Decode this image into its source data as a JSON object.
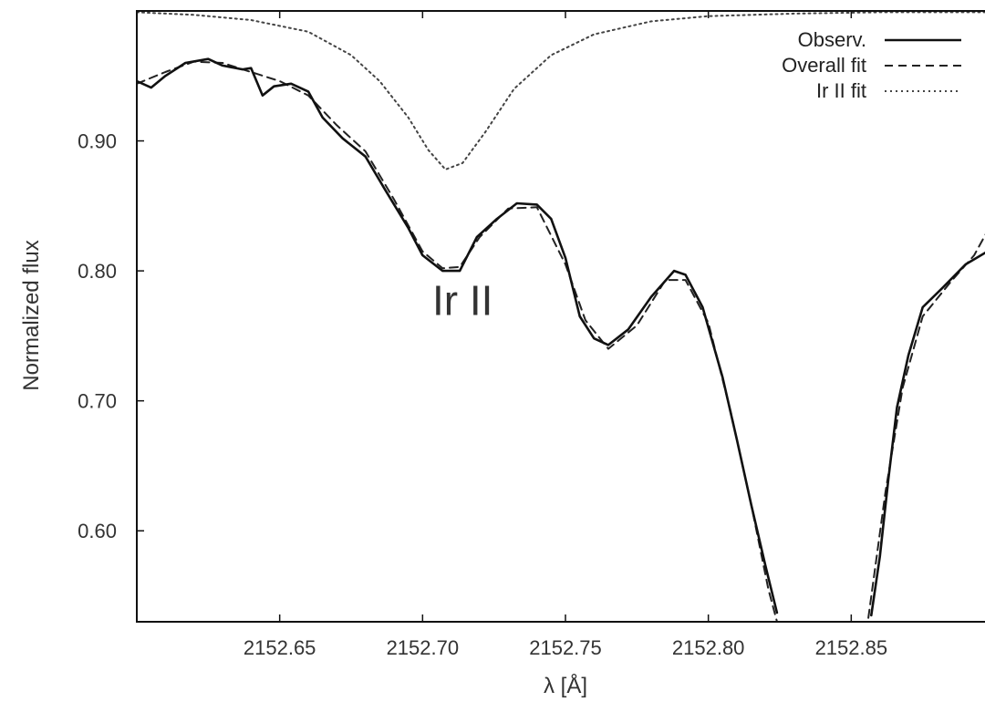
{
  "chart_data": {
    "type": "line",
    "title": "",
    "xlabel": "λ [Å]",
    "ylabel": "Normalized flux",
    "xlim": [
      2152.6,
      2152.9
    ],
    "ylim": [
      0.53,
      1.0
    ],
    "grid": false,
    "legend_position": "top-right",
    "x_ticks": [
      2152.65,
      2152.7,
      2152.75,
      2152.8,
      2152.85
    ],
    "x_tick_labels": [
      "2152.65",
      "2152.70",
      "2152.75",
      "2152.80",
      "2152.85"
    ],
    "y_ticks": [
      0.6,
      0.7,
      0.8,
      0.9
    ],
    "y_tick_labels": [
      "0.60",
      "0.70",
      "0.80",
      "0.90"
    ],
    "annotations": [
      {
        "text": "Ir II",
        "x": 2152.714,
        "y": 0.766
      }
    ],
    "series": [
      {
        "name": "Observ.",
        "style": "solid",
        "color": "#111111",
        "segments": [
          [
            [
              2152.6,
              0.946
            ],
            [
              2152.605,
              0.941
            ],
            [
              2152.61,
              0.95
            ],
            [
              2152.617,
              0.96
            ],
            [
              2152.625,
              0.963
            ],
            [
              2152.63,
              0.958
            ],
            [
              2152.637,
              0.955
            ],
            [
              2152.64,
              0.956
            ],
            [
              2152.644,
              0.935
            ],
            [
              2152.648,
              0.942
            ],
            [
              2152.654,
              0.944
            ],
            [
              2152.66,
              0.938
            ],
            [
              2152.665,
              0.918
            ],
            [
              2152.672,
              0.902
            ],
            [
              2152.68,
              0.888
            ],
            [
              2152.687,
              0.862
            ],
            [
              2152.695,
              0.833
            ],
            [
              2152.7,
              0.812
            ],
            [
              2152.707,
              0.8
            ],
            [
              2152.713,
              0.8
            ],
            [
              2152.719,
              0.826
            ],
            [
              2152.726,
              0.84
            ],
            [
              2152.733,
              0.852
            ],
            [
              2152.74,
              0.851
            ],
            [
              2152.745,
              0.84
            ],
            [
              2152.75,
              0.81
            ],
            [
              2152.755,
              0.765
            ],
            [
              2152.76,
              0.748
            ],
            [
              2152.765,
              0.743
            ],
            [
              2152.772,
              0.755
            ],
            [
              2152.78,
              0.78
            ],
            [
              2152.788,
              0.8
            ],
            [
              2152.792,
              0.797
            ],
            [
              2152.798,
              0.772
            ],
            [
              2152.805,
              0.718
            ],
            [
              2152.81,
              0.67
            ],
            [
              2152.815,
              0.62
            ],
            [
              2152.82,
              0.573
            ],
            [
              2152.824,
              0.537
            ]
          ],
          [
            [
              2152.857,
              0.535
            ],
            [
              2152.86,
              0.58
            ],
            [
              2152.863,
              0.64
            ],
            [
              2152.866,
              0.695
            ],
            [
              2152.87,
              0.735
            ],
            [
              2152.875,
              0.772
            ],
            [
              2152.882,
              0.787
            ],
            [
              2152.89,
              0.805
            ],
            [
              2152.9,
              0.818
            ]
          ]
        ]
      },
      {
        "name": "Overall fit",
        "style": "dashed",
        "color": "#222222",
        "segments": [
          [
            [
              2152.6,
              0.944
            ],
            [
              2152.61,
              0.953
            ],
            [
              2152.62,
              0.961
            ],
            [
              2152.63,
              0.96
            ],
            [
              2152.64,
              0.953
            ],
            [
              2152.65,
              0.946
            ],
            [
              2152.66,
              0.935
            ],
            [
              2152.67,
              0.912
            ],
            [
              2152.68,
              0.892
            ],
            [
              2152.69,
              0.855
            ],
            [
              2152.7,
              0.815
            ],
            [
              2152.707,
              0.802
            ],
            [
              2152.713,
              0.803
            ],
            [
              2152.72,
              0.826
            ],
            [
              2152.73,
              0.848
            ],
            [
              2152.74,
              0.849
            ],
            [
              2152.75,
              0.805
            ],
            [
              2152.757,
              0.762
            ],
            [
              2152.765,
              0.74
            ],
            [
              2152.775,
              0.758
            ],
            [
              2152.785,
              0.793
            ],
            [
              2152.792,
              0.793
            ],
            [
              2152.8,
              0.76
            ],
            [
              2152.808,
              0.69
            ],
            [
              2152.815,
              0.62
            ],
            [
              2152.821,
              0.555
            ],
            [
              2152.825,
              0.522
            ]
          ],
          [
            [
              2152.856,
              0.533
            ],
            [
              2152.862,
              0.63
            ],
            [
              2152.868,
              0.71
            ],
            [
              2152.875,
              0.765
            ],
            [
              2152.885,
              0.792
            ],
            [
              2152.893,
              0.812
            ],
            [
              2152.9,
              0.84
            ]
          ]
        ]
      },
      {
        "name": "Ir II fit",
        "style": "dotted",
        "color": "#444444",
        "segments": [
          [
            [
              2152.6,
              0.999
            ],
            [
              2152.62,
              0.997
            ],
            [
              2152.64,
              0.993
            ],
            [
              2152.66,
              0.984
            ],
            [
              2152.675,
              0.966
            ],
            [
              2152.685,
              0.946
            ],
            [
              2152.695,
              0.918
            ],
            [
              2152.702,
              0.893
            ],
            [
              2152.708,
              0.878
            ],
            [
              2152.714,
              0.883
            ],
            [
              2152.722,
              0.907
            ],
            [
              2152.732,
              0.94
            ],
            [
              2152.745,
              0.966
            ],
            [
              2152.76,
              0.982
            ],
            [
              2152.78,
              0.992
            ],
            [
              2152.8,
              0.996
            ],
            [
              2152.83,
              0.998
            ],
            [
              2152.86,
              0.999
            ],
            [
              2152.9,
              0.999
            ]
          ]
        ]
      }
    ]
  }
}
